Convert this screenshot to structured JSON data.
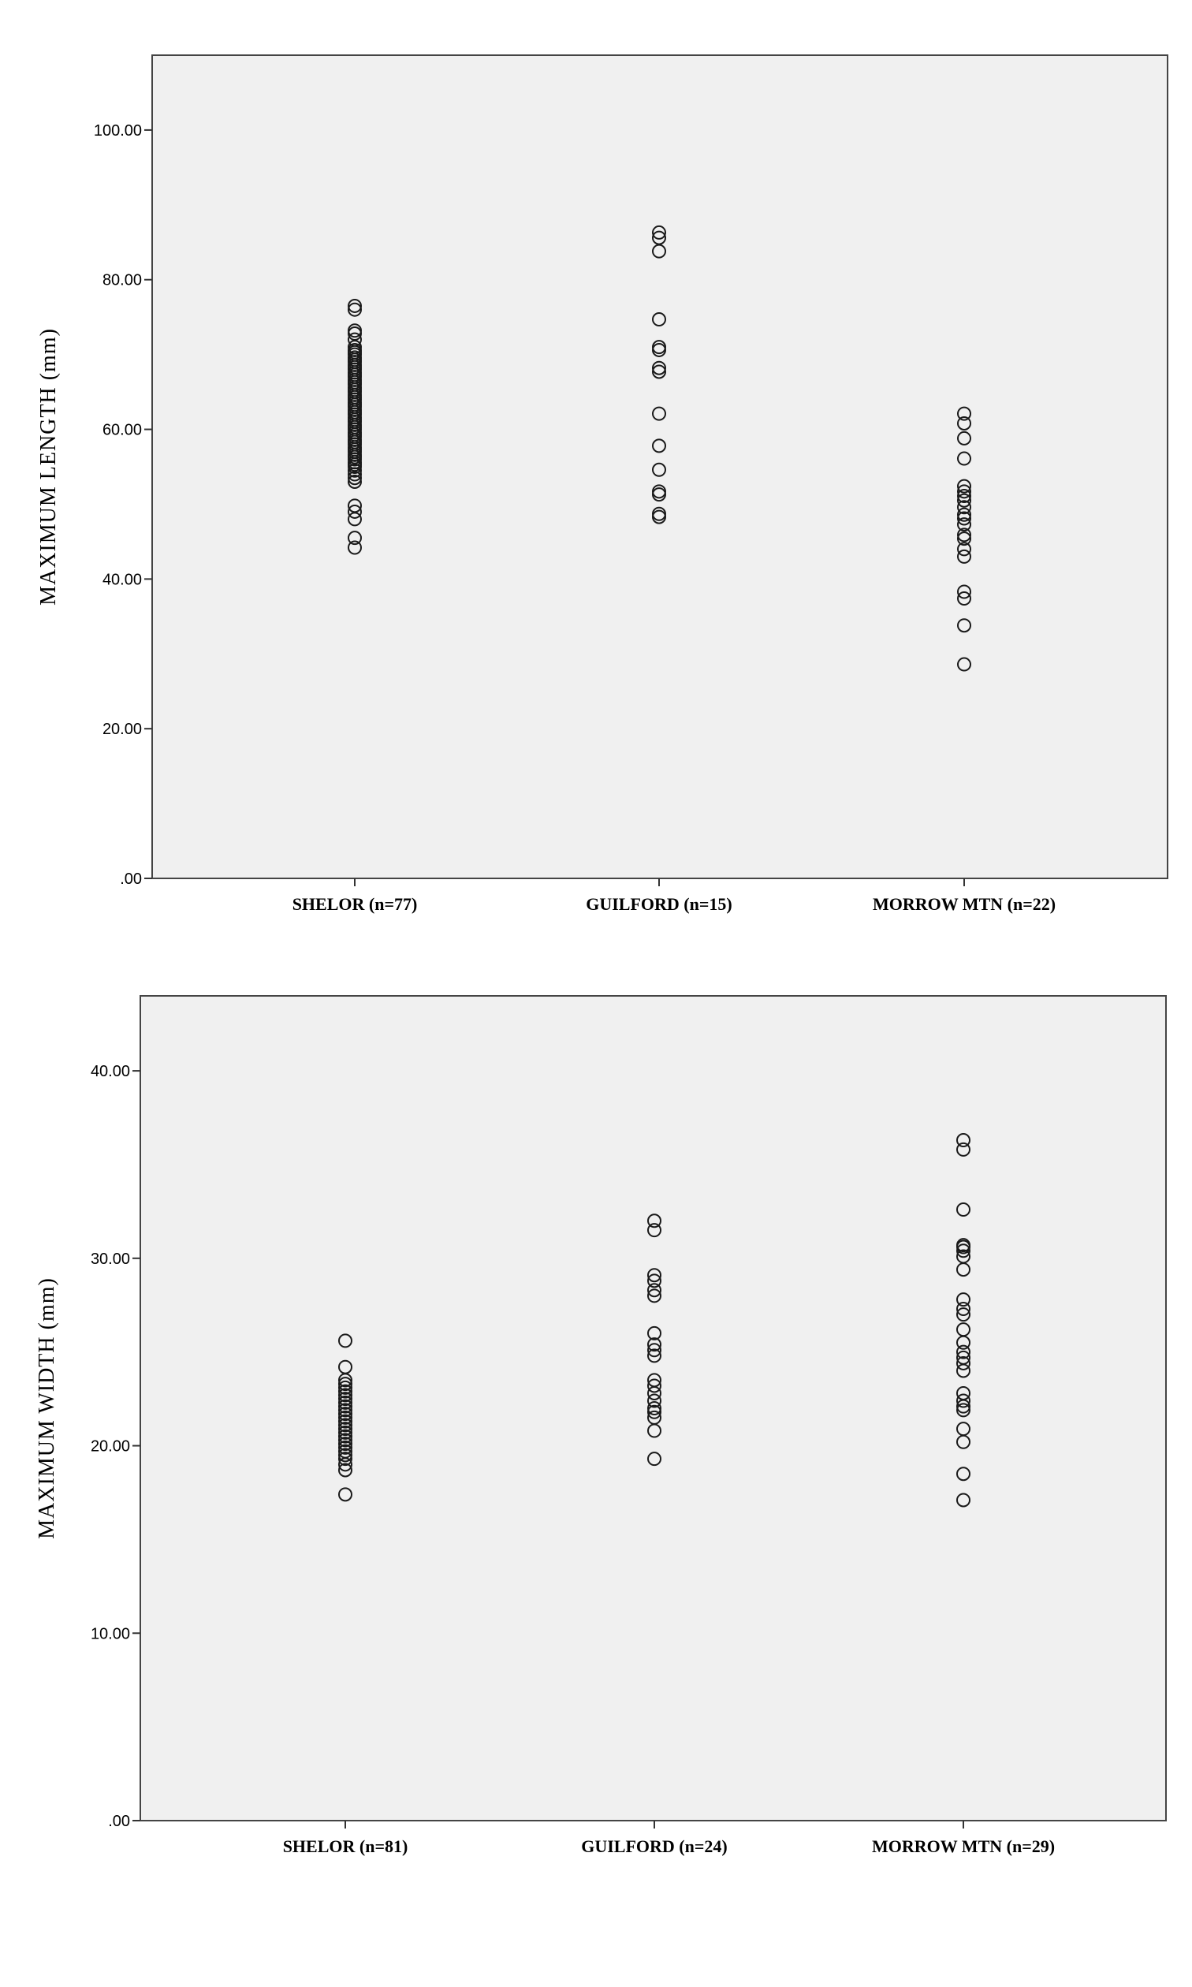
{
  "chart_data": [
    {
      "type": "scatter",
      "ylabel": "MAXIMUM LENGTH (mm)",
      "ylim": [
        0,
        110
      ],
      "yticks": [
        ".00",
        "20.00",
        "40.00",
        "60.00",
        "80.00",
        "100.00"
      ],
      "yticks_values": [
        0,
        20,
        40,
        60,
        80,
        100
      ],
      "categories": [
        "SHELOR (n=77)",
        "GUILFORD (n=15)",
        "MORROW MTN (n=22)"
      ],
      "series": [
        {
          "values": [
            44.2,
            45.5,
            48.0,
            49.0,
            49.8,
            53.0,
            53.5,
            54.0,
            54.5,
            55.0,
            55.3,
            55.6,
            56.0,
            56.3,
            56.6,
            57.0,
            57.3,
            57.6,
            58.0,
            58.3,
            58.6,
            59.0,
            59.3,
            59.6,
            60.0,
            60.3,
            60.6,
            61.0,
            61.3,
            61.6,
            62.0,
            62.3,
            62.6,
            63.0,
            63.3,
            63.6,
            64.0,
            64.3,
            64.6,
            65.0,
            65.3,
            65.6,
            66.0,
            66.3,
            66.6,
            67.0,
            67.3,
            67.6,
            68.0,
            68.3,
            68.6,
            69.0,
            69.3,
            69.6,
            70.0,
            70.3,
            70.6,
            71.0,
            72.0,
            72.8,
            73.2,
            76.0,
            76.5
          ]
        },
        {
          "values": [
            48.3,
            48.7,
            51.3,
            51.7,
            54.6,
            57.8,
            62.1,
            67.7,
            68.2,
            70.6,
            71.0,
            74.7,
            83.8,
            85.6,
            86.3
          ]
        },
        {
          "values": [
            28.6,
            33.8,
            37.4,
            38.3,
            43.0,
            44.0,
            45.4,
            45.9,
            47.3,
            48.1,
            48.6,
            49.6,
            50.5,
            51.1,
            51.7,
            52.4,
            56.1,
            58.8,
            60.8,
            62.1
          ]
        }
      ]
    },
    {
      "type": "scatter",
      "ylabel": "MAXIMUM WIDTH (mm)",
      "ylim": [
        0,
        44
      ],
      "yticks": [
        ".00",
        "10.00",
        "20.00",
        "30.00",
        "40.00"
      ],
      "yticks_values": [
        0,
        10,
        20,
        30,
        40
      ],
      "categories": [
        "SHELOR (n=81)",
        "GUILFORD (n=24)",
        "MORROW MTN (n=29)"
      ],
      "series": [
        {
          "values": [
            17.4,
            18.7,
            19.0,
            19.3,
            19.5,
            19.7,
            19.9,
            20.1,
            20.3,
            20.5,
            20.7,
            20.9,
            21.1,
            21.3,
            21.5,
            21.7,
            21.9,
            22.1,
            22.3,
            22.5,
            22.7,
            22.9,
            23.1,
            23.3,
            23.5,
            24.2,
            25.6
          ]
        },
        {
          "values": [
            19.3,
            20.8,
            21.5,
            21.8,
            22.0,
            22.4,
            22.8,
            23.2,
            23.5,
            24.8,
            25.1,
            25.4,
            26.0,
            28.0,
            28.3,
            28.8,
            29.1,
            31.5,
            32.0
          ]
        },
        {
          "values": [
            17.1,
            18.5,
            20.2,
            20.9,
            21.9,
            22.1,
            22.4,
            22.8,
            24.0,
            24.4,
            24.7,
            25.0,
            25.5,
            26.2,
            27.0,
            27.3,
            27.8,
            29.4,
            30.1,
            30.4,
            30.6,
            30.7,
            32.6,
            35.8,
            36.3
          ]
        }
      ]
    }
  ]
}
